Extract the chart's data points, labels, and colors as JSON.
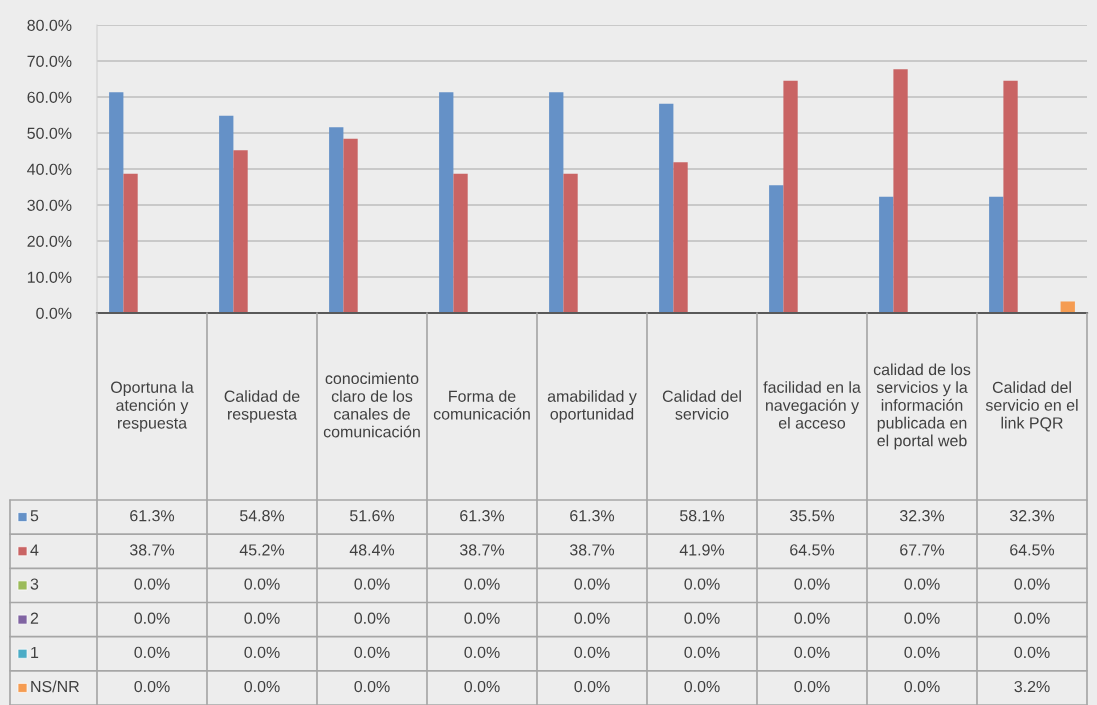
{
  "chart_data": {
    "type": "bar",
    "categories": [
      "Oportuna la atención y respuesta",
      "Calidad de respuesta",
      "conocimiento claro de los canales de comunicación",
      "Forma de comunicación",
      "amabilidad y oportunidad",
      "Calidad del servicio",
      "facilidad en la navegación y el acceso",
      "calidad de los servicios y la información publicada en el portal web",
      "Calidad del servicio en el link PQR"
    ],
    "series": [
      {
        "name": "5",
        "color": "#6591c7",
        "values": [
          61.3,
          54.8,
          51.6,
          61.3,
          61.3,
          58.1,
          35.5,
          32.3,
          32.3
        ],
        "value_labels": [
          "61.3%",
          "54.8%",
          "51.6%",
          "61.3%",
          "61.3%",
          "58.1%",
          "35.5%",
          "32.3%",
          "32.3%"
        ]
      },
      {
        "name": "4",
        "color": "#c96464",
        "values": [
          38.7,
          45.2,
          48.4,
          38.7,
          38.7,
          41.9,
          64.5,
          67.7,
          64.5
        ],
        "value_labels": [
          "38.7%",
          "45.2%",
          "48.4%",
          "38.7%",
          "38.7%",
          "41.9%",
          "64.5%",
          "67.7%",
          "64.5%"
        ]
      },
      {
        "name": "3",
        "color": "#9bbb59",
        "values": [
          0,
          0,
          0,
          0,
          0,
          0,
          0,
          0,
          0
        ],
        "value_labels": [
          "0.0%",
          "0.0%",
          "0.0%",
          "0.0%",
          "0.0%",
          "0.0%",
          "0.0%",
          "0.0%",
          "0.0%"
        ]
      },
      {
        "name": "2",
        "color": "#8064a2",
        "values": [
          0,
          0,
          0,
          0,
          0,
          0,
          0,
          0,
          0
        ],
        "value_labels": [
          "0.0%",
          "0.0%",
          "0.0%",
          "0.0%",
          "0.0%",
          "0.0%",
          "0.0%",
          "0.0%",
          "0.0%"
        ]
      },
      {
        "name": "1",
        "color": "#4bacc6",
        "values": [
          0,
          0,
          0,
          0,
          0,
          0,
          0,
          0,
          0
        ],
        "value_labels": [
          "0.0%",
          "0.0%",
          "0.0%",
          "0.0%",
          "0.0%",
          "0.0%",
          "0.0%",
          "0.0%",
          "0.0%"
        ]
      },
      {
        "name": "NS/NR",
        "color": "#f59c52",
        "values": [
          0,
          0,
          0,
          0,
          0,
          0,
          0,
          0,
          3.2
        ],
        "value_labels": [
          "0.0%",
          "0.0%",
          "0.0%",
          "0.0%",
          "0.0%",
          "0.0%",
          "0.0%",
          "0.0%",
          "3.2%"
        ]
      }
    ],
    "ylim": [
      0,
      80
    ],
    "yticks": [
      {
        "value": 0,
        "label": "0.0%"
      },
      {
        "value": 10,
        "label": "10.0%"
      },
      {
        "value": 20,
        "label": "20.0%"
      },
      {
        "value": 30,
        "label": "30.0%"
      },
      {
        "value": 40,
        "label": "40.0%"
      },
      {
        "value": 50,
        "label": "50.0%"
      },
      {
        "value": 60,
        "label": "60.0%"
      },
      {
        "value": 70,
        "label": "70.0%"
      },
      {
        "value": 80,
        "label": "80.0%"
      }
    ],
    "grid": "y",
    "legend": "bottom"
  }
}
